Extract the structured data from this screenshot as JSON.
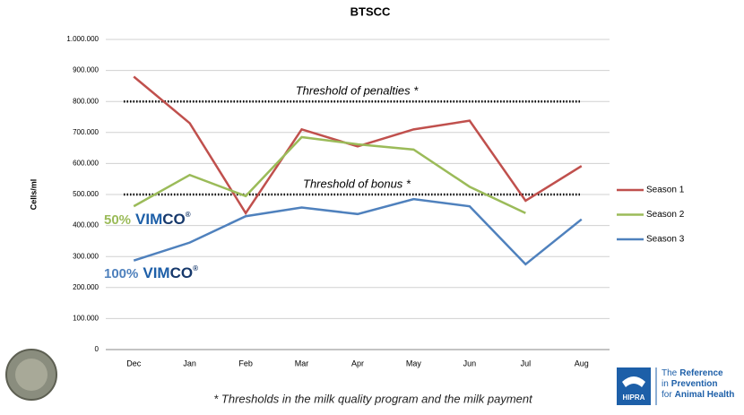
{
  "chart_data": {
    "type": "line",
    "title": "BTSCC",
    "y_label": "Cells/ml",
    "categories": [
      "Dec",
      "Jan",
      "Feb",
      "Mar",
      "Apr",
      "May",
      "Jun",
      "Jul",
      "Aug"
    ],
    "series": [
      {
        "name": "Season 1",
        "color": "#c0504d",
        "values": [
          880000,
          730000,
          440000,
          710000,
          655000,
          710000,
          738000,
          480000,
          592000
        ]
      },
      {
        "name": "Season 2",
        "color": "#9bbb59",
        "values": [
          462000,
          563000,
          495000,
          685000,
          662000,
          645000,
          525000,
          440000,
          null
        ]
      },
      {
        "name": "Season 3",
        "color": "#4f81bd",
        "values": [
          287000,
          345000,
          430000,
          458000,
          437000,
          485000,
          462000,
          275000,
          420000
        ]
      }
    ],
    "ylim": [
      0,
      1000000
    ],
    "yticks": [
      0,
      {
        "value": 100000,
        "label": "100.000"
      },
      {
        "value": 200000,
        "label": "200.000"
      },
      {
        "value": 300000,
        "label": "300.000"
      },
      {
        "value": 400000,
        "label": "400.000"
      },
      {
        "value": 500000,
        "label": "500.000"
      },
      {
        "value": 600000,
        "label": "600.000"
      },
      {
        "value": 700000,
        "label": "700.000"
      },
      {
        "value": 800000,
        "label": "800.000"
      },
      {
        "value": 900000,
        "label": "900.000"
      },
      {
        "value": 1000000,
        "label": "1.000.000"
      }
    ],
    "grid": true,
    "thresholds": [
      {
        "label": "Threshold of penalties *",
        "value": 800000
      },
      {
        "label": "Threshold of bonus *",
        "value": 500000
      }
    ],
    "annotations": [
      {
        "percent": "50%",
        "brand_a": "VIM",
        "brand_b": "CO",
        "mark": "®",
        "color": "#9bbb59"
      },
      {
        "percent": "100%",
        "brand_a": "VIM",
        "brand_b": "CO",
        "mark": "®",
        "color": "#4f81bd"
      }
    ],
    "footnote": "* Thresholds in the milk quality program and the milk payment"
  },
  "logo": {
    "name": "HIPRA",
    "lines": [
      [
        "The",
        "Reference"
      ],
      [
        "in",
        "Prevention"
      ],
      [
        "for",
        "Animal Health"
      ]
    ]
  }
}
